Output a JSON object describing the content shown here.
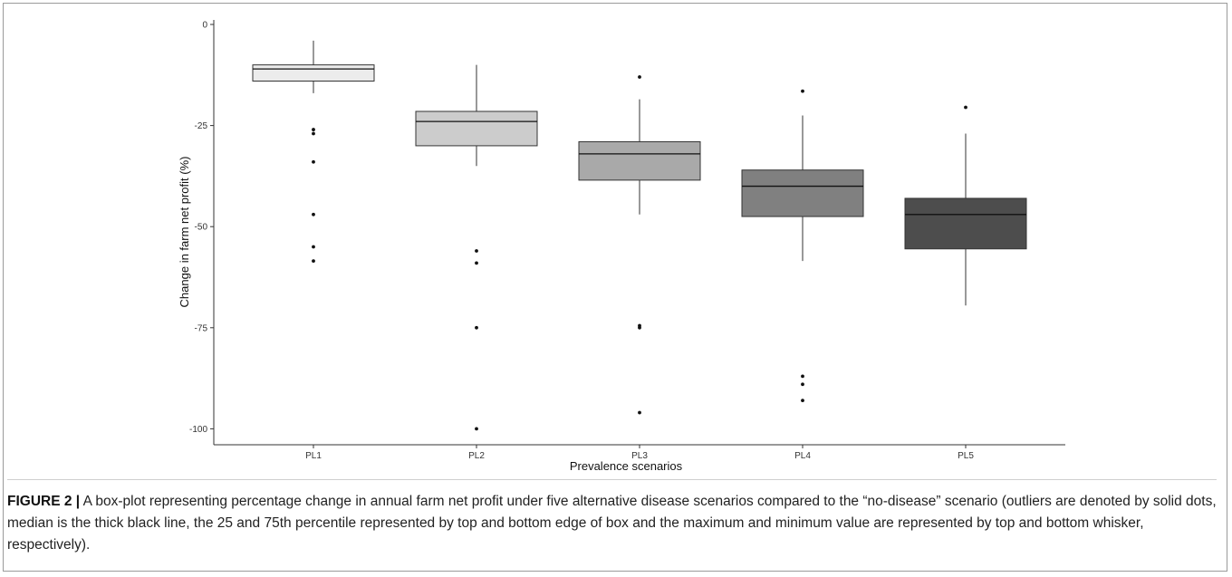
{
  "chart_data": {
    "type": "boxplot",
    "xlabel": "Prevalence scenarios",
    "ylabel": "Change in farm net profit (%)",
    "ylim": [
      -102,
      0
    ],
    "yticks": [
      0,
      -25,
      -50,
      -75,
      -100
    ],
    "grid": false,
    "categories": [
      "PL1",
      "PL2",
      "PL3",
      "PL4",
      "PL5"
    ],
    "boxes": [
      {
        "category": "PL1",
        "whisker_max": -4,
        "q3": -10,
        "median": -11,
        "q1": -14,
        "whisker_min": -17,
        "outliers": [
          -26,
          -27,
          -34,
          -47,
          -55,
          -58.5
        ],
        "fill": "#ececec"
      },
      {
        "category": "PL2",
        "whisker_max": -10,
        "q3": -21.5,
        "median": -24,
        "q1": -30,
        "whisker_min": -35,
        "outliers": [
          -56,
          -59,
          -75,
          -100
        ],
        "fill": "#cccccc"
      },
      {
        "category": "PL3",
        "whisker_max": -18.5,
        "q3": -29,
        "median": -32,
        "q1": -38.5,
        "whisker_min": -47,
        "outliers": [
          -13,
          -74.5,
          -75,
          -96
        ],
        "fill": "#a9a9a9"
      },
      {
        "category": "PL4",
        "whisker_max": -22.5,
        "q3": -36,
        "median": -40,
        "q1": -47.5,
        "whisker_min": -58.5,
        "outliers": [
          -16.5,
          -87,
          -89,
          -93
        ],
        "fill": "#808080"
      },
      {
        "category": "PL5",
        "whisker_max": -27,
        "q3": -43,
        "median": -47,
        "q1": -55.5,
        "whisker_min": -69.5,
        "outliers": [
          -20.5
        ],
        "fill": "#4d4d4d"
      }
    ]
  },
  "caption": {
    "label": "FIGURE 2 |",
    "text": " A box-plot representing percentage change in annual farm net profit under five alternative disease scenarios compared to the “no-disease” scenario (outliers are denoted by solid dots, median is the thick black line, the 25 and 75th percentile represented by top and bottom edge of box and the maximum and minimum value are represented by top and bottom whisker, respectively)."
  }
}
